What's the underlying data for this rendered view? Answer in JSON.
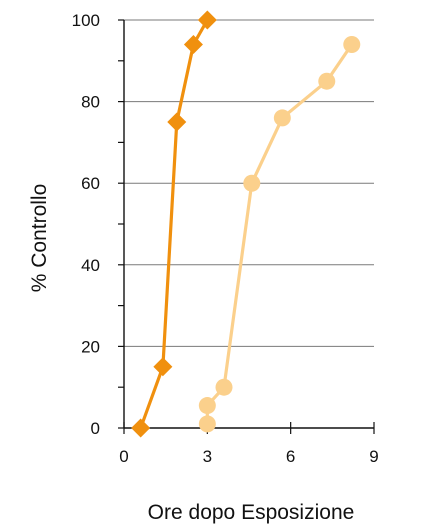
{
  "chart_data": {
    "type": "line",
    "xlabel": "Ore dopo Esposizione",
    "ylabel": "% Controllo",
    "xlim": [
      0,
      9
    ],
    "ylim": [
      0,
      100
    ],
    "x_ticks": [
      "0",
      "3",
      "6",
      "9"
    ],
    "y_ticks": [
      "0",
      "20",
      "40",
      "60",
      "80",
      "100"
    ],
    "grid": "horizontal",
    "series": [
      {
        "marker": "diamond",
        "color": "#F0900E",
        "points": [
          [
            0.6,
            0
          ],
          [
            1.4,
            15
          ],
          [
            1.9,
            75
          ],
          [
            2.5,
            94
          ],
          [
            3.0,
            100
          ]
        ]
      },
      {
        "marker": "circle",
        "color": "#FBD08C",
        "points": [
          [
            3.0,
            1
          ],
          [
            3.0,
            5.5
          ],
          [
            3.6,
            10
          ],
          [
            4.6,
            60
          ],
          [
            5.7,
            76
          ],
          [
            7.3,
            85
          ],
          [
            8.2,
            94
          ]
        ]
      }
    ]
  }
}
